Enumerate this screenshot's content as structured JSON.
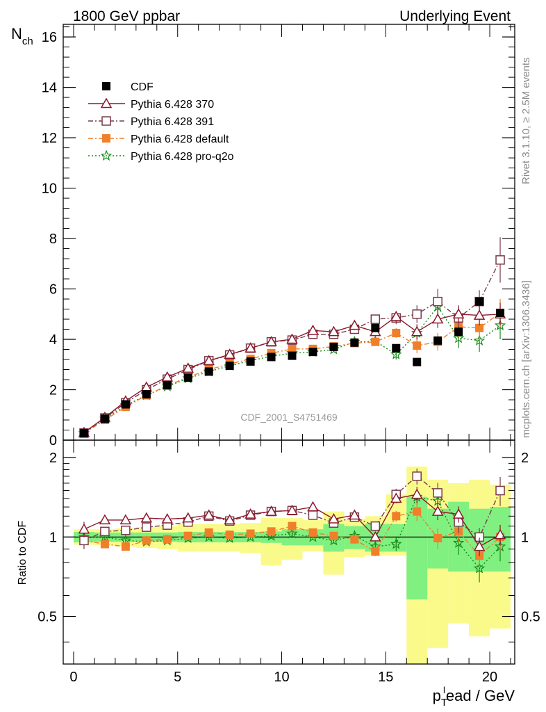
{
  "header": {
    "left_title": "1800 GeV ppbar",
    "right_title": "Underlying Event"
  },
  "side_labels": {
    "rivet": "Rivet 3.1.10, ≥ 2.5M events",
    "mcplots": "mcplots.cern.ch [arXiv:1306.3436]"
  },
  "chart_data": [
    {
      "type": "scatter",
      "analysis_label": "CDF_2001_S4751469",
      "ylabel_main": "N",
      "ylabel_sub": "ch",
      "xlim": [
        -0.5,
        21.2
      ],
      "ylim": [
        0,
        16.5
      ],
      "yticks": [
        0,
        2,
        4,
        6,
        8,
        10,
        12,
        14,
        16
      ],
      "grid": false,
      "legend_position": "top-left",
      "x": [
        0.5,
        1.5,
        2.5,
        3.5,
        4.5,
        5.5,
        6.5,
        7.5,
        8.5,
        9.5,
        10.5,
        11.5,
        12.5,
        13.5,
        14.5,
        15.5,
        16.5,
        17.5,
        18.5,
        19.5,
        20.5
      ],
      "series": [
        {
          "name": "CDF",
          "color": "#000000",
          "marker": "filled-square",
          "line": "none",
          "values": [
            0.28,
            0.85,
            1.42,
            1.82,
            2.18,
            2.48,
            2.72,
            2.95,
            3.12,
            3.3,
            3.35,
            3.5,
            3.7,
            3.87,
            4.45,
            3.65,
            3.1,
            3.95,
            4.3,
            5.5,
            5.05
          ]
        },
        {
          "name": "Pythia 6.428 370",
          "color": "#8b1a2e",
          "marker": "open-triangle",
          "line": "solid",
          "values": [
            0.3,
            0.9,
            1.55,
            2.1,
            2.5,
            2.85,
            3.15,
            3.4,
            3.65,
            3.9,
            4.0,
            4.35,
            4.3,
            4.55,
            4.3,
            4.9,
            4.3,
            4.8,
            5.0,
            4.95,
            5.0
          ],
          "errors": [
            0.02,
            0.02,
            0.03,
            0.03,
            0.04,
            0.04,
            0.05,
            0.05,
            0.06,
            0.06,
            0.07,
            0.08,
            0.09,
            0.1,
            0.15,
            0.2,
            0.3,
            0.35,
            0.35,
            0.4,
            0.45
          ]
        },
        {
          "name": "Pythia 6.428 391",
          "color": "#7a3b4a",
          "marker": "open-square",
          "line": "dash-dot",
          "values": [
            0.28,
            0.88,
            1.48,
            2.0,
            2.42,
            2.8,
            3.15,
            3.38,
            3.65,
            3.9,
            3.97,
            4.2,
            4.2,
            4.4,
            4.8,
            4.85,
            5.0,
            5.5,
            4.85,
            5.5,
            7.15
          ],
          "errors": [
            0.02,
            0.02,
            0.03,
            0.03,
            0.04,
            0.04,
            0.05,
            0.05,
            0.06,
            0.06,
            0.07,
            0.08,
            0.09,
            0.1,
            0.15,
            0.25,
            0.35,
            0.5,
            0.45,
            0.45,
            0.9
          ]
        },
        {
          "name": "Pythia 6.428 default",
          "color": "#f07f2a",
          "marker": "filled-square",
          "line": "dash-dot",
          "values": [
            0.27,
            0.8,
            1.32,
            1.78,
            2.16,
            2.5,
            2.8,
            3.02,
            3.22,
            3.45,
            3.62,
            3.62,
            3.72,
            3.85,
            3.9,
            4.25,
            3.75,
            3.9,
            4.5,
            4.45,
            5.05
          ],
          "errors": [
            0.02,
            0.02,
            0.03,
            0.03,
            0.04,
            0.04,
            0.05,
            0.05,
            0.06,
            0.06,
            0.07,
            0.08,
            0.09,
            0.1,
            0.15,
            0.2,
            0.3,
            0.35,
            0.4,
            0.45,
            0.55
          ]
        },
        {
          "name": "Pythia 6.428 pro-q2o",
          "color": "#1a8a1a",
          "marker": "star",
          "line": "dotted",
          "values": [
            0.28,
            0.85,
            1.38,
            1.78,
            2.13,
            2.45,
            2.72,
            2.95,
            3.15,
            3.33,
            3.45,
            3.5,
            3.6,
            3.9,
            3.92,
            3.4,
            4.25,
            5.3,
            4.05,
            3.95,
            4.55
          ],
          "errors": [
            0.02,
            0.02,
            0.03,
            0.03,
            0.04,
            0.04,
            0.05,
            0.05,
            0.06,
            0.06,
            0.07,
            0.08,
            0.09,
            0.1,
            0.15,
            0.2,
            0.3,
            0.35,
            0.4,
            0.45,
            0.55
          ]
        }
      ]
    },
    {
      "type": "scatter",
      "ylabel": "Ratio to CDF",
      "xlabel_main": "p",
      "xlabel_sub": "T",
      "xlabel_sup": "l",
      "xlabel_rest": "ead / GeV",
      "xlim": [
        -0.5,
        21.2
      ],
      "ylim": [
        0.33,
        2.33
      ],
      "xticks": [
        0,
        5,
        10,
        15,
        20
      ],
      "yticks": [
        0.5,
        1,
        2
      ],
      "yscale": "log",
      "grid": false,
      "reference_line": 1,
      "band_colors": {
        "inner": "#80f080",
        "outer": "#fafa8a"
      },
      "bands": [
        {
          "x": [
            0,
            1
          ],
          "inner": [
            0.955,
            1.045
          ],
          "outer": [
            0.935,
            1.07
          ]
        },
        {
          "x": [
            1,
            2
          ],
          "inner": [
            0.96,
            1.04
          ],
          "outer": [
            0.93,
            1.07
          ]
        },
        {
          "x": [
            2,
            3
          ],
          "inner": [
            0.96,
            1.04
          ],
          "outer": [
            0.92,
            1.08
          ]
        },
        {
          "x": [
            3,
            4
          ],
          "inner": [
            0.96,
            1.04
          ],
          "outer": [
            0.91,
            1.09
          ]
        },
        {
          "x": [
            4,
            5
          ],
          "inner": [
            0.96,
            1.04
          ],
          "outer": [
            0.9,
            1.1
          ]
        },
        {
          "x": [
            5,
            6
          ],
          "inner": [
            0.955,
            1.045
          ],
          "outer": [
            0.88,
            1.12
          ]
        },
        {
          "x": [
            6,
            7
          ],
          "inner": [
            0.955,
            1.045
          ],
          "outer": [
            0.88,
            1.12
          ]
        },
        {
          "x": [
            7,
            8
          ],
          "inner": [
            0.955,
            1.045
          ],
          "outer": [
            0.88,
            1.12
          ]
        },
        {
          "x": [
            8,
            9
          ],
          "inner": [
            0.955,
            1.045
          ],
          "outer": [
            0.87,
            1.13
          ]
        },
        {
          "x": [
            9,
            10
          ],
          "inner": [
            0.95,
            1.05
          ],
          "outer": [
            0.78,
            1.18
          ]
        },
        {
          "x": [
            10,
            11
          ],
          "inner": [
            0.93,
            1.07
          ],
          "outer": [
            0.82,
            1.18
          ]
        },
        {
          "x": [
            11,
            12
          ],
          "inner": [
            0.93,
            1.07
          ],
          "outer": [
            0.88,
            1.16
          ]
        },
        {
          "x": [
            12,
            13
          ],
          "inner": [
            0.88,
            1.12
          ],
          "outer": [
            0.72,
            1.25
          ]
        },
        {
          "x": [
            13,
            14
          ],
          "inner": [
            0.9,
            1.1
          ],
          "outer": [
            0.84,
            1.17
          ]
        },
        {
          "x": [
            14,
            15
          ],
          "inner": [
            0.88,
            1.12
          ],
          "outer": [
            0.85,
            1.2
          ]
        },
        {
          "x": [
            15,
            16
          ],
          "inner": [
            0.88,
            1.12
          ],
          "outer": [
            0.85,
            1.45
          ]
        },
        {
          "x": [
            16,
            17
          ],
          "inner": [
            0.58,
            1.42
          ],
          "outer": [
            0.33,
            1.85
          ]
        },
        {
          "x": [
            17,
            18
          ],
          "inner": [
            0.76,
            1.28
          ],
          "outer": [
            0.38,
            1.65
          ]
        },
        {
          "x": [
            18,
            19
          ],
          "inner": [
            0.74,
            1.36
          ],
          "outer": [
            0.47,
            1.6
          ]
        },
        {
          "x": [
            19,
            20
          ],
          "inner": [
            0.74,
            1.28
          ],
          "outer": [
            0.42,
            1.65
          ]
        },
        {
          "x": [
            20,
            21
          ],
          "inner": [
            0.74,
            1.3
          ],
          "outer": [
            0.45,
            1.58
          ]
        }
      ],
      "series": [
        {
          "name": "Pythia 6.428 370",
          "values": [
            1.07,
            1.16,
            1.16,
            1.18,
            1.17,
            1.18,
            1.21,
            1.16,
            1.22,
            1.25,
            1.26,
            1.3,
            1.17,
            1.21,
            1.0,
            1.4,
            1.45,
            1.25,
            1.22,
            0.92,
            1.02
          ]
        },
        {
          "name": "Pythia 6.428 391",
          "values": [
            0.97,
            1.05,
            1.06,
            1.09,
            1.11,
            1.14,
            1.2,
            1.15,
            1.21,
            1.25,
            1.26,
            1.21,
            1.13,
            1.19,
            1.1,
            1.45,
            1.7,
            1.47,
            1.14,
            1.0,
            1.5
          ]
        },
        {
          "name": "Pythia 6.428 default",
          "values": [
            0.97,
            0.94,
            0.92,
            0.97,
            0.98,
            1.01,
            1.04,
            1.02,
            1.03,
            1.05,
            1.1,
            1.04,
            1.01,
            0.98,
            0.88,
            1.2,
            1.25,
            0.99,
            1.05,
            0.85,
            1.0
          ]
        },
        {
          "name": "Pythia 6.428 pro-q2o",
          "values": [
            1.0,
            1.0,
            0.97,
            0.96,
            0.97,
            0.99,
            1.0,
            0.99,
            1.0,
            1.01,
            1.03,
            1.0,
            0.97,
            1.01,
            0.92,
            0.94,
            1.42,
            1.37,
            0.95,
            0.76,
            0.92
          ]
        }
      ]
    }
  ]
}
